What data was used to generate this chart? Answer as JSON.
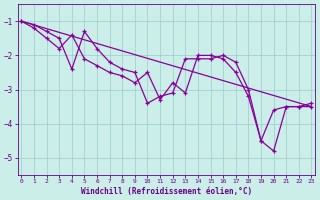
{
  "line_main": {
    "x": [
      0,
      1,
      2,
      3,
      4,
      5,
      6,
      7,
      8,
      9,
      10,
      11,
      12,
      13,
      14,
      15,
      16,
      17,
      18,
      19,
      20,
      21,
      22,
      23
    ],
    "y": [
      -1.0,
      -1.1,
      -1.3,
      -1.5,
      -2.4,
      -1.3,
      -1.8,
      -2.2,
      -2.4,
      -2.5,
      -3.4,
      -3.2,
      -3.1,
      -2.1,
      -2.1,
      -2.1,
      -2.0,
      -2.2,
      -3.0,
      -4.5,
      -4.8,
      -3.5,
      -3.5,
      -3.4
    ],
    "color": "#880099",
    "marker": "+",
    "markersize": 3.5,
    "linewidth": 0.9
  },
  "line_second": {
    "x": [
      0,
      1,
      2,
      3,
      4,
      5,
      6,
      7,
      8,
      9,
      10,
      11,
      12,
      13,
      14,
      15,
      16,
      17,
      18,
      19,
      20,
      21,
      22,
      23
    ],
    "y": [
      -1.0,
      -1.2,
      -1.5,
      -1.8,
      -1.4,
      -2.1,
      -2.3,
      -2.5,
      -2.6,
      -2.8,
      -2.5,
      -3.3,
      -2.8,
      -3.1,
      -2.0,
      -2.0,
      -2.1,
      -2.5,
      -3.2,
      -4.5,
      -3.6,
      -3.5,
      -3.5,
      -3.5
    ],
    "color": "#880099",
    "marker": "+",
    "markersize": 3.5,
    "linewidth": 0.9
  },
  "line_trend": {
    "x": [
      0,
      23
    ],
    "y": [
      -1.0,
      -3.5
    ],
    "color": "#880099",
    "linewidth": 0.9
  },
  "xlim": [
    0,
    23
  ],
  "ylim": [
    -5.5,
    -0.5
  ],
  "yticks": [
    -1,
    -2,
    -3,
    -4,
    -5
  ],
  "xticks": [
    0,
    1,
    2,
    3,
    4,
    5,
    6,
    7,
    8,
    9,
    10,
    11,
    12,
    13,
    14,
    15,
    16,
    17,
    18,
    19,
    20,
    21,
    22,
    23
  ],
  "xlabel": "Windchill (Refroidissement éolien,°C)",
  "background_color": "#cceee8",
  "grid_color": "#99cccc",
  "tick_color": "#660088",
  "label_color": "#660088",
  "figsize": [
    3.2,
    2.0
  ],
  "dpi": 100
}
